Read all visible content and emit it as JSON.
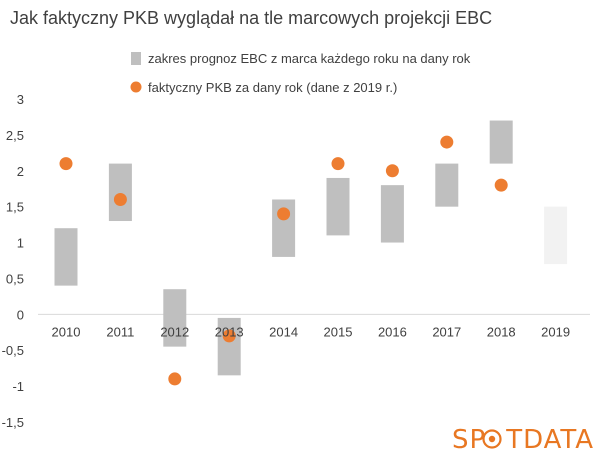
{
  "chart_data": {
    "type": "bar",
    "title": "Jak faktyczny PKB wyglądał na tle marcowych projekcji EBC",
    "categories": [
      "2010",
      "2011",
      "2012",
      "2013",
      "2014",
      "2015",
      "2016",
      "2017",
      "2018",
      "2019"
    ],
    "series": [
      {
        "name": "zakres prognoz EBC z marca każdego roku na dany rok",
        "kind": "range",
        "low": [
          0.4,
          1.3,
          -0.45,
          -0.85,
          0.8,
          1.1,
          1.0,
          1.5,
          2.1,
          0.7
        ],
        "high": [
          1.2,
          2.1,
          0.35,
          -0.05,
          1.6,
          1.9,
          1.8,
          2.1,
          2.7,
          1.5
        ],
        "color": "#bfbfbf",
        "highlight_last_color": "#f2f2f2"
      },
      {
        "name": "faktyczny PKB za dany rok (dane z 2019 r.)",
        "kind": "point",
        "values": [
          2.1,
          1.6,
          -0.9,
          -0.3,
          1.4,
          2.1,
          2.0,
          2.4,
          1.8,
          null
        ],
        "color": "#ed7d31"
      }
    ],
    "ylim": [
      -1.5,
      3
    ],
    "yticks": [
      "3",
      "2,5",
      "2",
      "1,5",
      "1",
      "0,5",
      "0",
      "-0,5",
      "-1",
      "-1,5"
    ],
    "ytick_values": [
      3,
      2.5,
      2,
      1.5,
      1,
      0.5,
      0,
      -0.5,
      -1,
      -1.5
    ],
    "grid": false,
    "legend_position": "top"
  },
  "brand": {
    "text_before": "SP",
    "text_after": "TDATA",
    "color": "#e87722"
  }
}
